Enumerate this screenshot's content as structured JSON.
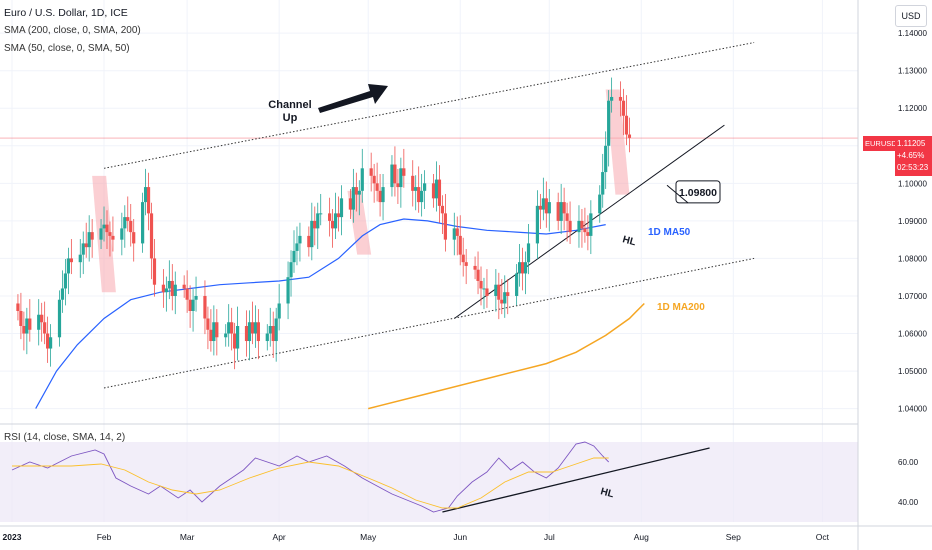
{
  "header": {
    "title": "Euro / U.S. Dollar, 1D, ICE",
    "sma200_label": "SMA (200, close, 0, SMA, 200)",
    "sma50_label": "SMA (50, close, 0, SMA, 50)",
    "currency": "USD",
    "rsi_label": "RSI (14, close, SMA, 14, 2)"
  },
  "last_price": {
    "symbol": "EURUSD",
    "price": "1.11205",
    "change": "+4.65%",
    "countdown": "02:53:23",
    "value": 1.11205
  },
  "annotations": {
    "channel_text": [
      "Channel",
      "Up"
    ],
    "target_box": "1.09800",
    "target_value": 1.098,
    "hl_price": "HL",
    "hl_rsi": "HL",
    "ma50_label": "1D MA50",
    "ma200_label": "1D MA200"
  },
  "colors": {
    "bull": "#26a69a",
    "bear": "#ef5350",
    "ma50": "#2962ff",
    "ma200": "#f5a623",
    "rsi": "#7e57c2",
    "rsi_ma": "#fbc02d",
    "highlight": "#f7a8ae",
    "price_tag": "#f23645"
  },
  "chart_data": {
    "type": "candlestick",
    "instrument": "Euro / U.S. Dollar",
    "timeframe": "1D",
    "x_ticks": [
      "2023",
      "Feb",
      "Mar",
      "Apr",
      "May",
      "Jun",
      "Jul",
      "Aug",
      "Sep",
      "Oct"
    ],
    "x_tick_days": [
      0,
      31,
      59,
      90,
      120,
      151,
      181,
      212,
      243,
      273
    ],
    "y_ticks": [
      1.04,
      1.05,
      1.06,
      1.07,
      1.08,
      1.09,
      1.1,
      1.11,
      1.12,
      1.13,
      1.14
    ],
    "y_tick_labels": [
      "1.04000",
      "1.05000",
      "1.06000",
      "1.07000",
      "1.08000",
      "1.09000",
      "1.10000",
      "1.11000",
      "1.12000",
      "1.13000",
      "1.14000"
    ],
    "rsi_ticks": [
      40,
      60
    ],
    "rsi_tick_labels": [
      "40.00",
      "60.00"
    ],
    "closes": [
      1.066,
      1.062,
      1.06,
      1.064,
      1.061,
      1.065,
      1.063,
      1.06,
      1.056,
      1.059,
      1.069,
      1.072,
      1.076,
      1.08,
      1.079,
      1.081,
      1.084,
      1.083,
      1.087,
      1.085,
      1.088,
      1.089,
      1.087,
      1.086,
      1.085,
      1.088,
      1.091,
      1.09,
      1.087,
      1.084,
      1.095,
      1.099,
      1.092,
      1.08,
      1.073,
      1.071,
      1.072,
      1.074,
      1.07,
      1.073,
      1.072,
      1.069,
      1.066,
      1.069,
      1.07,
      1.064,
      1.061,
      1.058,
      1.063,
      1.059,
      1.06,
      1.063,
      1.06,
      1.056,
      1.062,
      1.058,
      1.063,
      1.06,
      1.063,
      1.058,
      1.06,
      1.062,
      1.058,
      1.064,
      1.068,
      1.075,
      1.079,
      1.082,
      1.084,
      1.086,
      1.083,
      1.09,
      1.088,
      1.092,
      1.092,
      1.09,
      1.088,
      1.092,
      1.091,
      1.096,
      1.093,
      1.099,
      1.097,
      1.098,
      1.104,
      1.102,
      1.1,
      1.098,
      1.095,
      1.099,
      1.105,
      1.1,
      1.099,
      1.104,
      1.102,
      1.098,
      1.099,
      1.095,
      1.098,
      1.1,
      1.096,
      1.101,
      1.094,
      1.092,
      1.085,
      1.088,
      1.086,
      1.081,
      1.079,
      1.078,
      1.077,
      1.074,
      1.072,
      1.072,
      1.07,
      1.073,
      1.069,
      1.068,
      1.071,
      1.07,
      1.076,
      1.079,
      1.076,
      1.079,
      1.084,
      1.094,
      1.093,
      1.096,
      1.092,
      1.095,
      1.09,
      1.095,
      1.092,
      1.09,
      1.087,
      1.09,
      1.088,
      1.087,
      1.086,
      1.092,
      1.097,
      1.103,
      1.11,
      1.122,
      1.123,
      1.122,
      1.118,
      1.113,
      1.1121
    ],
    "ma50": [
      [
        8,
        1.04
      ],
      [
        15,
        1.05
      ],
      [
        22,
        1.057
      ],
      [
        31,
        1.064
      ],
      [
        40,
        1.069
      ],
      [
        50,
        1.071
      ],
      [
        60,
        1.072
      ],
      [
        70,
        1.073
      ],
      [
        80,
        1.0735
      ],
      [
        90,
        1.074
      ],
      [
        100,
        1.075
      ],
      [
        110,
        1.08
      ],
      [
        118,
        1.086
      ],
      [
        124,
        1.089
      ],
      [
        132,
        1.0905
      ],
      [
        140,
        1.09
      ],
      [
        150,
        1.0885
      ],
      [
        160,
        1.0875
      ],
      [
        170,
        1.087
      ],
      [
        180,
        1.0865
      ],
      [
        190,
        1.0875
      ],
      [
        200,
        1.089
      ]
    ],
    "ma200": [
      [
        120,
        1.04
      ],
      [
        140,
        1.044
      ],
      [
        160,
        1.048
      ],
      [
        180,
        1.052
      ],
      [
        190,
        1.055
      ],
      [
        200,
        1.0595
      ],
      [
        208,
        1.064
      ],
      [
        213,
        1.068
      ]
    ],
    "rsi": [
      [
        0,
        56
      ],
      [
        6,
        60
      ],
      [
        12,
        57
      ],
      [
        20,
        63
      ],
      [
        28,
        66
      ],
      [
        31,
        64
      ],
      [
        35,
        52
      ],
      [
        40,
        48
      ],
      [
        46,
        44
      ],
      [
        50,
        48
      ],
      [
        56,
        42
      ],
      [
        60,
        46
      ],
      [
        64,
        40
      ],
      [
        70,
        48
      ],
      [
        78,
        56
      ],
      [
        82,
        62
      ],
      [
        90,
        58
      ],
      [
        96,
        63
      ],
      [
        100,
        60
      ],
      [
        106,
        63
      ],
      [
        112,
        58
      ],
      [
        118,
        52
      ],
      [
        123,
        48
      ],
      [
        128,
        44
      ],
      [
        133,
        41
      ],
      [
        138,
        38
      ],
      [
        142,
        35
      ],
      [
        147,
        37
      ],
      [
        150,
        43
      ],
      [
        155,
        50
      ],
      [
        160,
        55
      ],
      [
        164,
        62
      ],
      [
        168,
        56
      ],
      [
        172,
        60
      ],
      [
        176,
        55
      ],
      [
        180,
        52
      ],
      [
        184,
        57
      ],
      [
        187,
        63
      ],
      [
        190,
        69
      ],
      [
        193,
        70
      ],
      [
        196,
        68
      ],
      [
        199,
        63
      ],
      [
        201,
        60
      ]
    ],
    "rsi_ma": [
      [
        0,
        58
      ],
      [
        10,
        58
      ],
      [
        20,
        58
      ],
      [
        30,
        59
      ],
      [
        38,
        56
      ],
      [
        46,
        50
      ],
      [
        54,
        46
      ],
      [
        62,
        44
      ],
      [
        70,
        46
      ],
      [
        80,
        52
      ],
      [
        90,
        57
      ],
      [
        100,
        60
      ],
      [
        110,
        58
      ],
      [
        120,
        52
      ],
      [
        128,
        47
      ],
      [
        136,
        41
      ],
      [
        145,
        37
      ],
      [
        150,
        37
      ],
      [
        158,
        42
      ],
      [
        166,
        50
      ],
      [
        174,
        55
      ],
      [
        182,
        55
      ],
      [
        190,
        59
      ],
      [
        196,
        62
      ],
      [
        201,
        62
      ]
    ],
    "channel_upper": [
      [
        31,
        1.104
      ],
      [
        250,
        1.1375
      ]
    ],
    "channel_lower": [
      [
        31,
        1.0455
      ],
      [
        250,
        1.08
      ]
    ],
    "price_hl_line": [
      [
        149,
        1.064
      ],
      [
        240,
        1.1155
      ]
    ],
    "rsi_hl_line": [
      [
        145,
        35
      ],
      [
        235,
        67
      ]
    ],
    "highlight_zones": [
      {
        "d0": 27,
        "d1": 35,
        "top": 1.102,
        "bottom": 1.071
      },
      {
        "d0": 113,
        "d1": 121,
        "top": 1.098,
        "bottom": 1.081
      },
      {
        "d0": 200,
        "d1": 208,
        "top": 1.125,
        "bottom": 1.097
      }
    ]
  }
}
